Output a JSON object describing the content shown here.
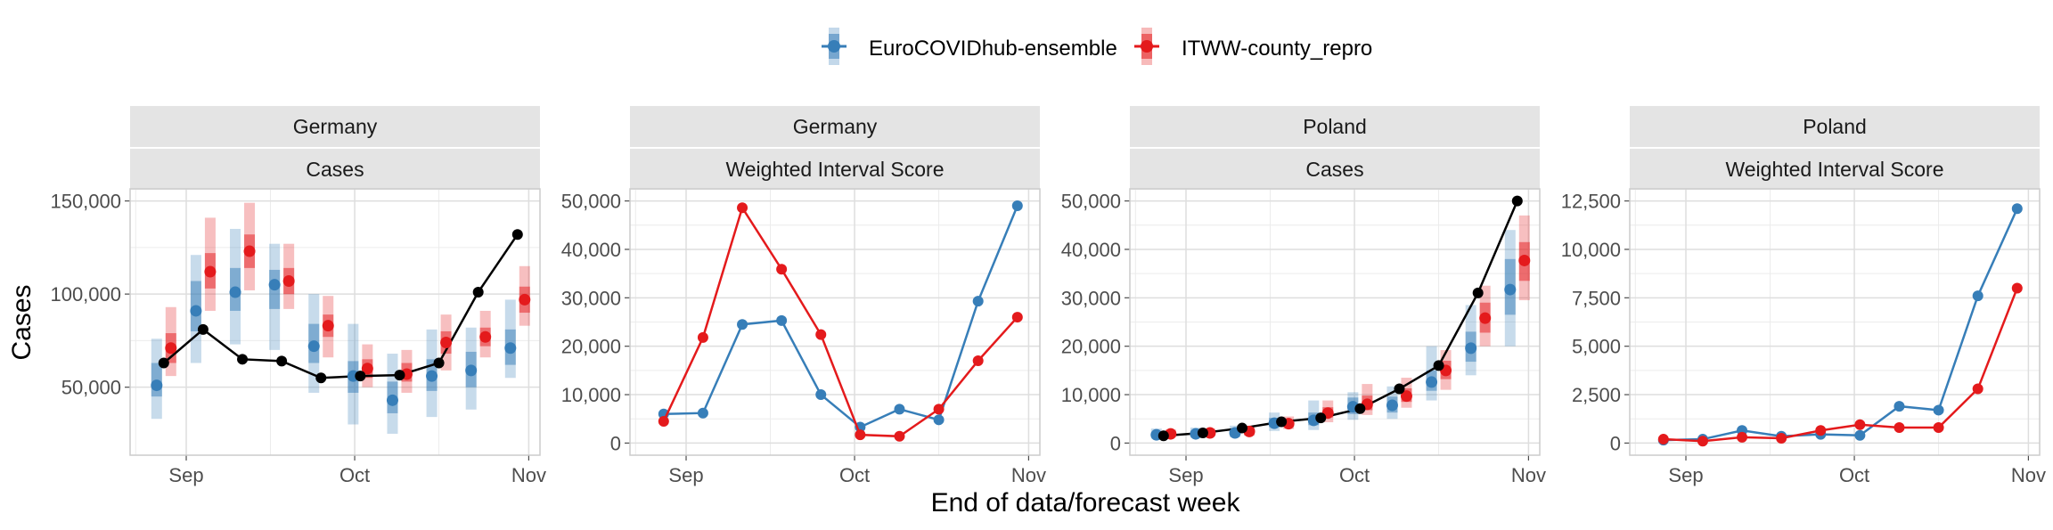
{
  "legend": {
    "items": [
      {
        "label": "EuroCOVIDhub-ensemble",
        "color": "#377EB8"
      },
      {
        "label": "ITWW-county_repro",
        "color": "#E41A1C"
      }
    ],
    "position": "top"
  },
  "xlabel": "End of data/forecast week",
  "ylabel": "Cases",
  "truth_color": "#000000",
  "chart_data": [
    {
      "type": "line",
      "strip": [
        "Germany",
        "Cases"
      ],
      "x_ticks": [
        "Sep",
        "Oct",
        "Nov"
      ],
      "x": [
        "2021-08-28",
        "2021-09-04",
        "2021-09-11",
        "2021-09-18",
        "2021-09-25",
        "2021-10-02",
        "2021-10-09",
        "2021-10-16",
        "2021-10-23",
        "2021-10-30"
      ],
      "ylim": [
        20000,
        150000
      ],
      "y_ticks": [
        50000,
        100000,
        150000
      ],
      "y_tick_labels": [
        "50,000",
        "100,000",
        "150,000"
      ],
      "truth": [
        63000,
        81000,
        65000,
        64000,
        55000,
        56000,
        56500,
        63000,
        101000,
        132000
      ],
      "series": [
        {
          "name": "EuroCOVIDhub-ensemble",
          "median": [
            51000,
            91000,
            101000,
            105000,
            72000,
            56000,
            43000,
            56000,
            59000,
            71000
          ],
          "inner": [
            [
              45000,
              63000
            ],
            [
              80000,
              107000
            ],
            [
              91000,
              114000
            ],
            [
              92000,
              113000
            ],
            [
              63000,
              84000
            ],
            [
              47000,
              64000
            ],
            [
              36000,
              53000
            ],
            [
              48000,
              65000
            ],
            [
              50000,
              69000
            ],
            [
              62000,
              81000
            ]
          ],
          "outer": [
            [
              33000,
              76000
            ],
            [
              63000,
              121000
            ],
            [
              73000,
              135000
            ],
            [
              70000,
              127000
            ],
            [
              47000,
              100000
            ],
            [
              30000,
              84000
            ],
            [
              25000,
              68000
            ],
            [
              34000,
              81000
            ],
            [
              38000,
              82000
            ],
            [
              55000,
              97000
            ]
          ]
        },
        {
          "name": "ITWW-county_repro",
          "median": [
            71000,
            112000,
            123000,
            107000,
            83000,
            60000,
            57000,
            74000,
            77000,
            97000
          ],
          "inner": [
            [
              63000,
              79000
            ],
            [
              103000,
              122000
            ],
            [
              114000,
              132000
            ],
            [
              100000,
              114000
            ],
            [
              77000,
              89000
            ],
            [
              55000,
              65000
            ],
            [
              53000,
              63000
            ],
            [
              68000,
              80000
            ],
            [
              72000,
              82000
            ],
            [
              90000,
              104000
            ]
          ],
          "outer": [
            [
              56000,
              93000
            ],
            [
              91000,
              141000
            ],
            [
              102000,
              149000
            ],
            [
              92000,
              127000
            ],
            [
              66000,
              99000
            ],
            [
              50000,
              73000
            ],
            [
              47000,
              70000
            ],
            [
              59000,
              89000
            ],
            [
              66000,
              91000
            ],
            [
              83000,
              115000
            ]
          ]
        }
      ]
    },
    {
      "type": "line",
      "strip": [
        "Germany",
        "Weighted Interval Score"
      ],
      "x_ticks": [
        "Sep",
        "Oct",
        "Nov"
      ],
      "x": [
        "2021-08-28",
        "2021-09-04",
        "2021-09-11",
        "2021-09-18",
        "2021-09-25",
        "2021-10-02",
        "2021-10-09",
        "2021-10-16",
        "2021-10-23",
        "2021-10-30"
      ],
      "ylim": [
        0,
        50000
      ],
      "y_ticks": [
        0,
        10000,
        20000,
        30000,
        40000,
        50000
      ],
      "y_tick_labels": [
        "0",
        "10,000",
        "20,000",
        "30,000",
        "40,000",
        "50,000"
      ],
      "series": [
        {
          "name": "EuroCOVIDhub-ensemble",
          "values": [
            6000,
            6200,
            24500,
            25300,
            10000,
            3300,
            7000,
            4800,
            29300,
            49000
          ]
        },
        {
          "name": "ITWW-county_repro",
          "values": [
            4500,
            21800,
            48600,
            35900,
            22400,
            1700,
            1400,
            7000,
            17000,
            26000
          ]
        }
      ]
    },
    {
      "type": "line",
      "strip": [
        "Poland",
        "Cases"
      ],
      "x_ticks": [
        "Sep",
        "Oct",
        "Nov"
      ],
      "x": [
        "2021-08-28",
        "2021-09-04",
        "2021-09-11",
        "2021-09-18",
        "2021-09-25",
        "2021-10-02",
        "2021-10-09",
        "2021-10-16",
        "2021-10-23",
        "2021-10-30"
      ],
      "ylim": [
        0,
        50000
      ],
      "y_ticks": [
        0,
        10000,
        20000,
        30000,
        40000,
        50000
      ],
      "y_tick_labels": [
        "0",
        "10,000",
        "20,000",
        "30,000",
        "40,000",
        "50,000"
      ],
      "truth": [
        1500,
        2100,
        3100,
        4400,
        5200,
        7100,
        11200,
        16000,
        31000,
        50000
      ],
      "series": [
        {
          "name": "EuroCOVIDhub-ensemble",
          "median": [
            1700,
            1900,
            2100,
            4100,
            4700,
            7500,
            7800,
            12600,
            19600,
            31700
          ],
          "inner": [
            [
              1300,
              2200
            ],
            [
              1500,
              2500
            ],
            [
              1600,
              2800
            ],
            [
              3300,
              5200
            ],
            [
              3700,
              6300
            ],
            [
              6000,
              9400
            ],
            [
              6300,
              9600
            ],
            [
              10800,
              15000
            ],
            [
              16800,
              23000
            ],
            [
              26500,
              38000
            ]
          ],
          "outer": [
            [
              900,
              3000
            ],
            [
              1100,
              3200
            ],
            [
              1200,
              3600
            ],
            [
              2500,
              6300
            ],
            [
              2700,
              8800
            ],
            [
              4800,
              10500
            ],
            [
              5000,
              11700
            ],
            [
              8800,
              20000
            ],
            [
              14000,
              28500
            ],
            [
              20000,
              44000
            ]
          ]
        },
        {
          "name": "ITWW-county_repro",
          "median": [
            1900,
            2100,
            2400,
            4000,
            6200,
            8000,
            9700,
            15000,
            25800,
            37700
          ],
          "inner": [
            [
              1600,
              2400
            ],
            [
              1800,
              2600
            ],
            [
              1900,
              3000
            ],
            [
              3400,
              4700
            ],
            [
              5300,
              7400
            ],
            [
              6800,
              9800
            ],
            [
              8500,
              11300
            ],
            [
              13200,
              17000
            ],
            [
              22800,
              29000
            ],
            [
              33500,
              41500
            ]
          ],
          "outer": [
            [
              1200,
              2800
            ],
            [
              1400,
              3000
            ],
            [
              1500,
              3500
            ],
            [
              2900,
              5500
            ],
            [
              4300,
              8800
            ],
            [
              5800,
              12200
            ],
            [
              7300,
              13500
            ],
            [
              11000,
              19200
            ],
            [
              20000,
              32500
            ],
            [
              29500,
              47000
            ]
          ]
        }
      ]
    },
    {
      "type": "line",
      "strip": [
        "Poland",
        "Weighted Interval Score"
      ],
      "x_ticks": [
        "Sep",
        "Oct",
        "Nov"
      ],
      "x": [
        "2021-08-28",
        "2021-09-04",
        "2021-09-11",
        "2021-09-18",
        "2021-09-25",
        "2021-10-02",
        "2021-10-09",
        "2021-10-16",
        "2021-10-23",
        "2021-10-30"
      ],
      "ylim": [
        0,
        12500
      ],
      "y_ticks": [
        0,
        2500,
        5000,
        7500,
        10000,
        12500
      ],
      "y_tick_labels": [
        "0",
        "2,500",
        "5,000",
        "7,500",
        "10,000",
        "12,500"
      ],
      "series": [
        {
          "name": "EuroCOVIDhub-ensemble",
          "values": [
            150,
            200,
            650,
            350,
            450,
            400,
            1900,
            1700,
            7600,
            12100
          ]
        },
        {
          "name": "ITWW-county_repro",
          "values": [
            200,
            100,
            300,
            250,
            650,
            950,
            800,
            800,
            2800,
            8000
          ]
        }
      ]
    }
  ]
}
